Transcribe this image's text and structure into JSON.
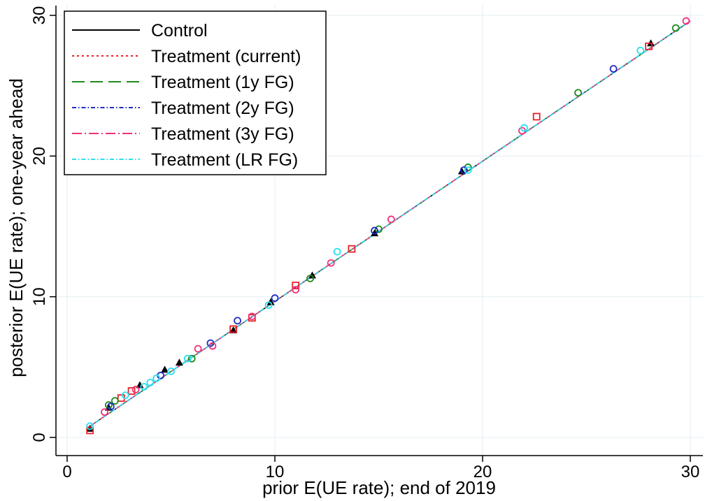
{
  "chart_data": {
    "type": "scatter",
    "xlabel": "prior E(UE rate); end of 2019",
    "ylabel": "posterior E(UE rate); one-year ahead",
    "xlim": [
      0,
      30
    ],
    "ylim": [
      0,
      30
    ],
    "xticks": [
      "0",
      "10",
      "20",
      "30"
    ],
    "yticks": [
      "0",
      "10",
      "20",
      "30"
    ],
    "grid": true,
    "legend_position": "top-left",
    "series": [
      {
        "name": "Control",
        "color": "#000000",
        "dash": "solid",
        "marker": "triangle",
        "line": [
          [
            1.0,
            0.7
          ],
          [
            30,
            29.6
          ]
        ],
        "points": [
          [
            1.1,
            0.6
          ],
          [
            2.0,
            2.1
          ],
          [
            3.5,
            3.7
          ],
          [
            4.7,
            4.8
          ],
          [
            5.4,
            5.3
          ],
          [
            8.0,
            7.6
          ],
          [
            9.8,
            9.6
          ],
          [
            11.8,
            11.5
          ],
          [
            14.8,
            14.5
          ],
          [
            19.0,
            18.9
          ],
          [
            28.1,
            28.0
          ]
        ]
      },
      {
        "name": "Treatment (current)",
        "color": "#e8212a",
        "dash": "dotted",
        "marker": "square",
        "line": [
          [
            1.0,
            0.7
          ],
          [
            30,
            29.6
          ]
        ],
        "points": [
          [
            1.1,
            0.5
          ],
          [
            2.6,
            2.8
          ],
          [
            3.1,
            3.3
          ],
          [
            8.0,
            7.7
          ],
          [
            8.9,
            8.5
          ],
          [
            11.0,
            10.8
          ],
          [
            13.7,
            13.4
          ],
          [
            22.6,
            22.8
          ],
          [
            28.0,
            27.8
          ]
        ]
      },
      {
        "name": "Treatment (1y FG)",
        "color": "#1e8a1e",
        "dash": "longdash",
        "marker": "circle",
        "line": [
          [
            1.0,
            0.7
          ],
          [
            30,
            29.6
          ]
        ],
        "points": [
          [
            2.0,
            2.3
          ],
          [
            2.3,
            2.6
          ],
          [
            6.0,
            5.6
          ],
          [
            11.7,
            11.3
          ],
          [
            15.0,
            14.8
          ],
          [
            19.3,
            19.2
          ],
          [
            24.6,
            24.5
          ],
          [
            29.3,
            29.1
          ]
        ]
      },
      {
        "name": "Treatment (2y FG)",
        "color": "#1f2bc8",
        "dash": "dashdot",
        "marker": "circle",
        "line": [
          [
            1.0,
            0.7
          ],
          [
            30,
            29.6
          ]
        ],
        "points": [
          [
            2.1,
            2.2
          ],
          [
            4.5,
            4.4
          ],
          [
            6.9,
            6.7
          ],
          [
            8.2,
            8.3
          ],
          [
            10.0,
            9.9
          ],
          [
            14.8,
            14.7
          ],
          [
            19.1,
            19.0
          ],
          [
            26.3,
            26.2
          ]
        ]
      },
      {
        "name": "Treatment (3y FG)",
        "color": "#f0317c",
        "dash": "longdashdot",
        "marker": "circle",
        "line": [
          [
            1.0,
            0.7
          ],
          [
            30,
            29.6
          ]
        ],
        "points": [
          [
            1.8,
            1.8
          ],
          [
            3.3,
            3.4
          ],
          [
            6.3,
            6.3
          ],
          [
            7.0,
            6.5
          ],
          [
            8.9,
            8.6
          ],
          [
            11.0,
            10.5
          ],
          [
            12.7,
            12.4
          ],
          [
            15.6,
            15.5
          ],
          [
            21.9,
            21.8
          ],
          [
            29.8,
            29.6
          ]
        ]
      },
      {
        "name": "Treatment (LR FG)",
        "color": "#29e0f0",
        "dash": "dashdot",
        "marker": "circle",
        "line": [
          [
            1.0,
            0.7
          ],
          [
            30,
            29.6
          ]
        ],
        "points": [
          [
            1.1,
            0.8
          ],
          [
            2.8,
            3.0
          ],
          [
            3.7,
            3.6
          ],
          [
            4.0,
            3.9
          ],
          [
            4.3,
            4.2
          ],
          [
            5.0,
            4.7
          ],
          [
            5.8,
            5.6
          ],
          [
            9.7,
            9.4
          ],
          [
            13.0,
            13.2
          ],
          [
            19.3,
            19.0
          ],
          [
            22.0,
            22.0
          ],
          [
            27.6,
            27.5
          ]
        ]
      }
    ]
  }
}
